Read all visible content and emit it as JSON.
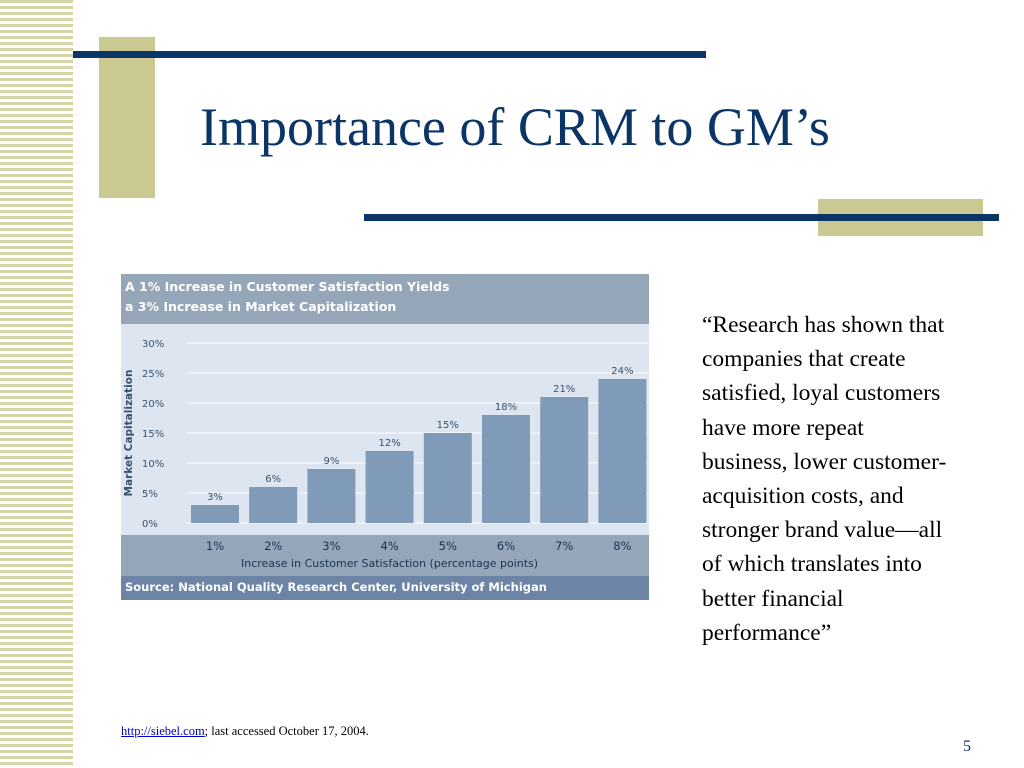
{
  "slide": {
    "title": "Importance of CRM to GM’s",
    "quote": "“Research has shown that companies that create satisfied, loyal customers have more repeat business, lower customer-acquisition costs, and stronger brand value—all of which translates into better financial performance”",
    "source_link": "http://siebel.com",
    "source_rest": "; last accessed October 17, 2004.",
    "page_number": "5"
  },
  "colors": {
    "navy": "#0b3566",
    "olive": "#cbc992",
    "bar": "#7f9bb7",
    "chart_bg": "#dde6f0",
    "header_bg": "#96a6b9",
    "footer_bg": "#6c84a6"
  },
  "chart_data": {
    "type": "bar",
    "title_line1": "A 1% Increase in Customer Satisfaction Yields",
    "title_line2": "a 3% Increase in Market Capitalization",
    "xlabel": "Increase in Customer Satisfaction (percentage points)",
    "ylabel": "Market Capitalization",
    "categories": [
      "1%",
      "2%",
      "3%",
      "4%",
      "5%",
      "6%",
      "7%",
      "8%"
    ],
    "values": [
      3,
      6,
      9,
      12,
      15,
      18,
      21,
      24
    ],
    "value_labels": [
      "3%",
      "6%",
      "9%",
      "12%",
      "15%",
      "18%",
      "21%",
      "24%"
    ],
    "y_ticks": [
      "0%",
      "5%",
      "10%",
      "15%",
      "20%",
      "25%",
      "30%"
    ],
    "y_tick_values": [
      0,
      5,
      10,
      15,
      20,
      25,
      30
    ],
    "ylim": [
      0,
      30
    ],
    "grid": true,
    "source": "Source: National Quality Research Center, University of Michigan"
  }
}
